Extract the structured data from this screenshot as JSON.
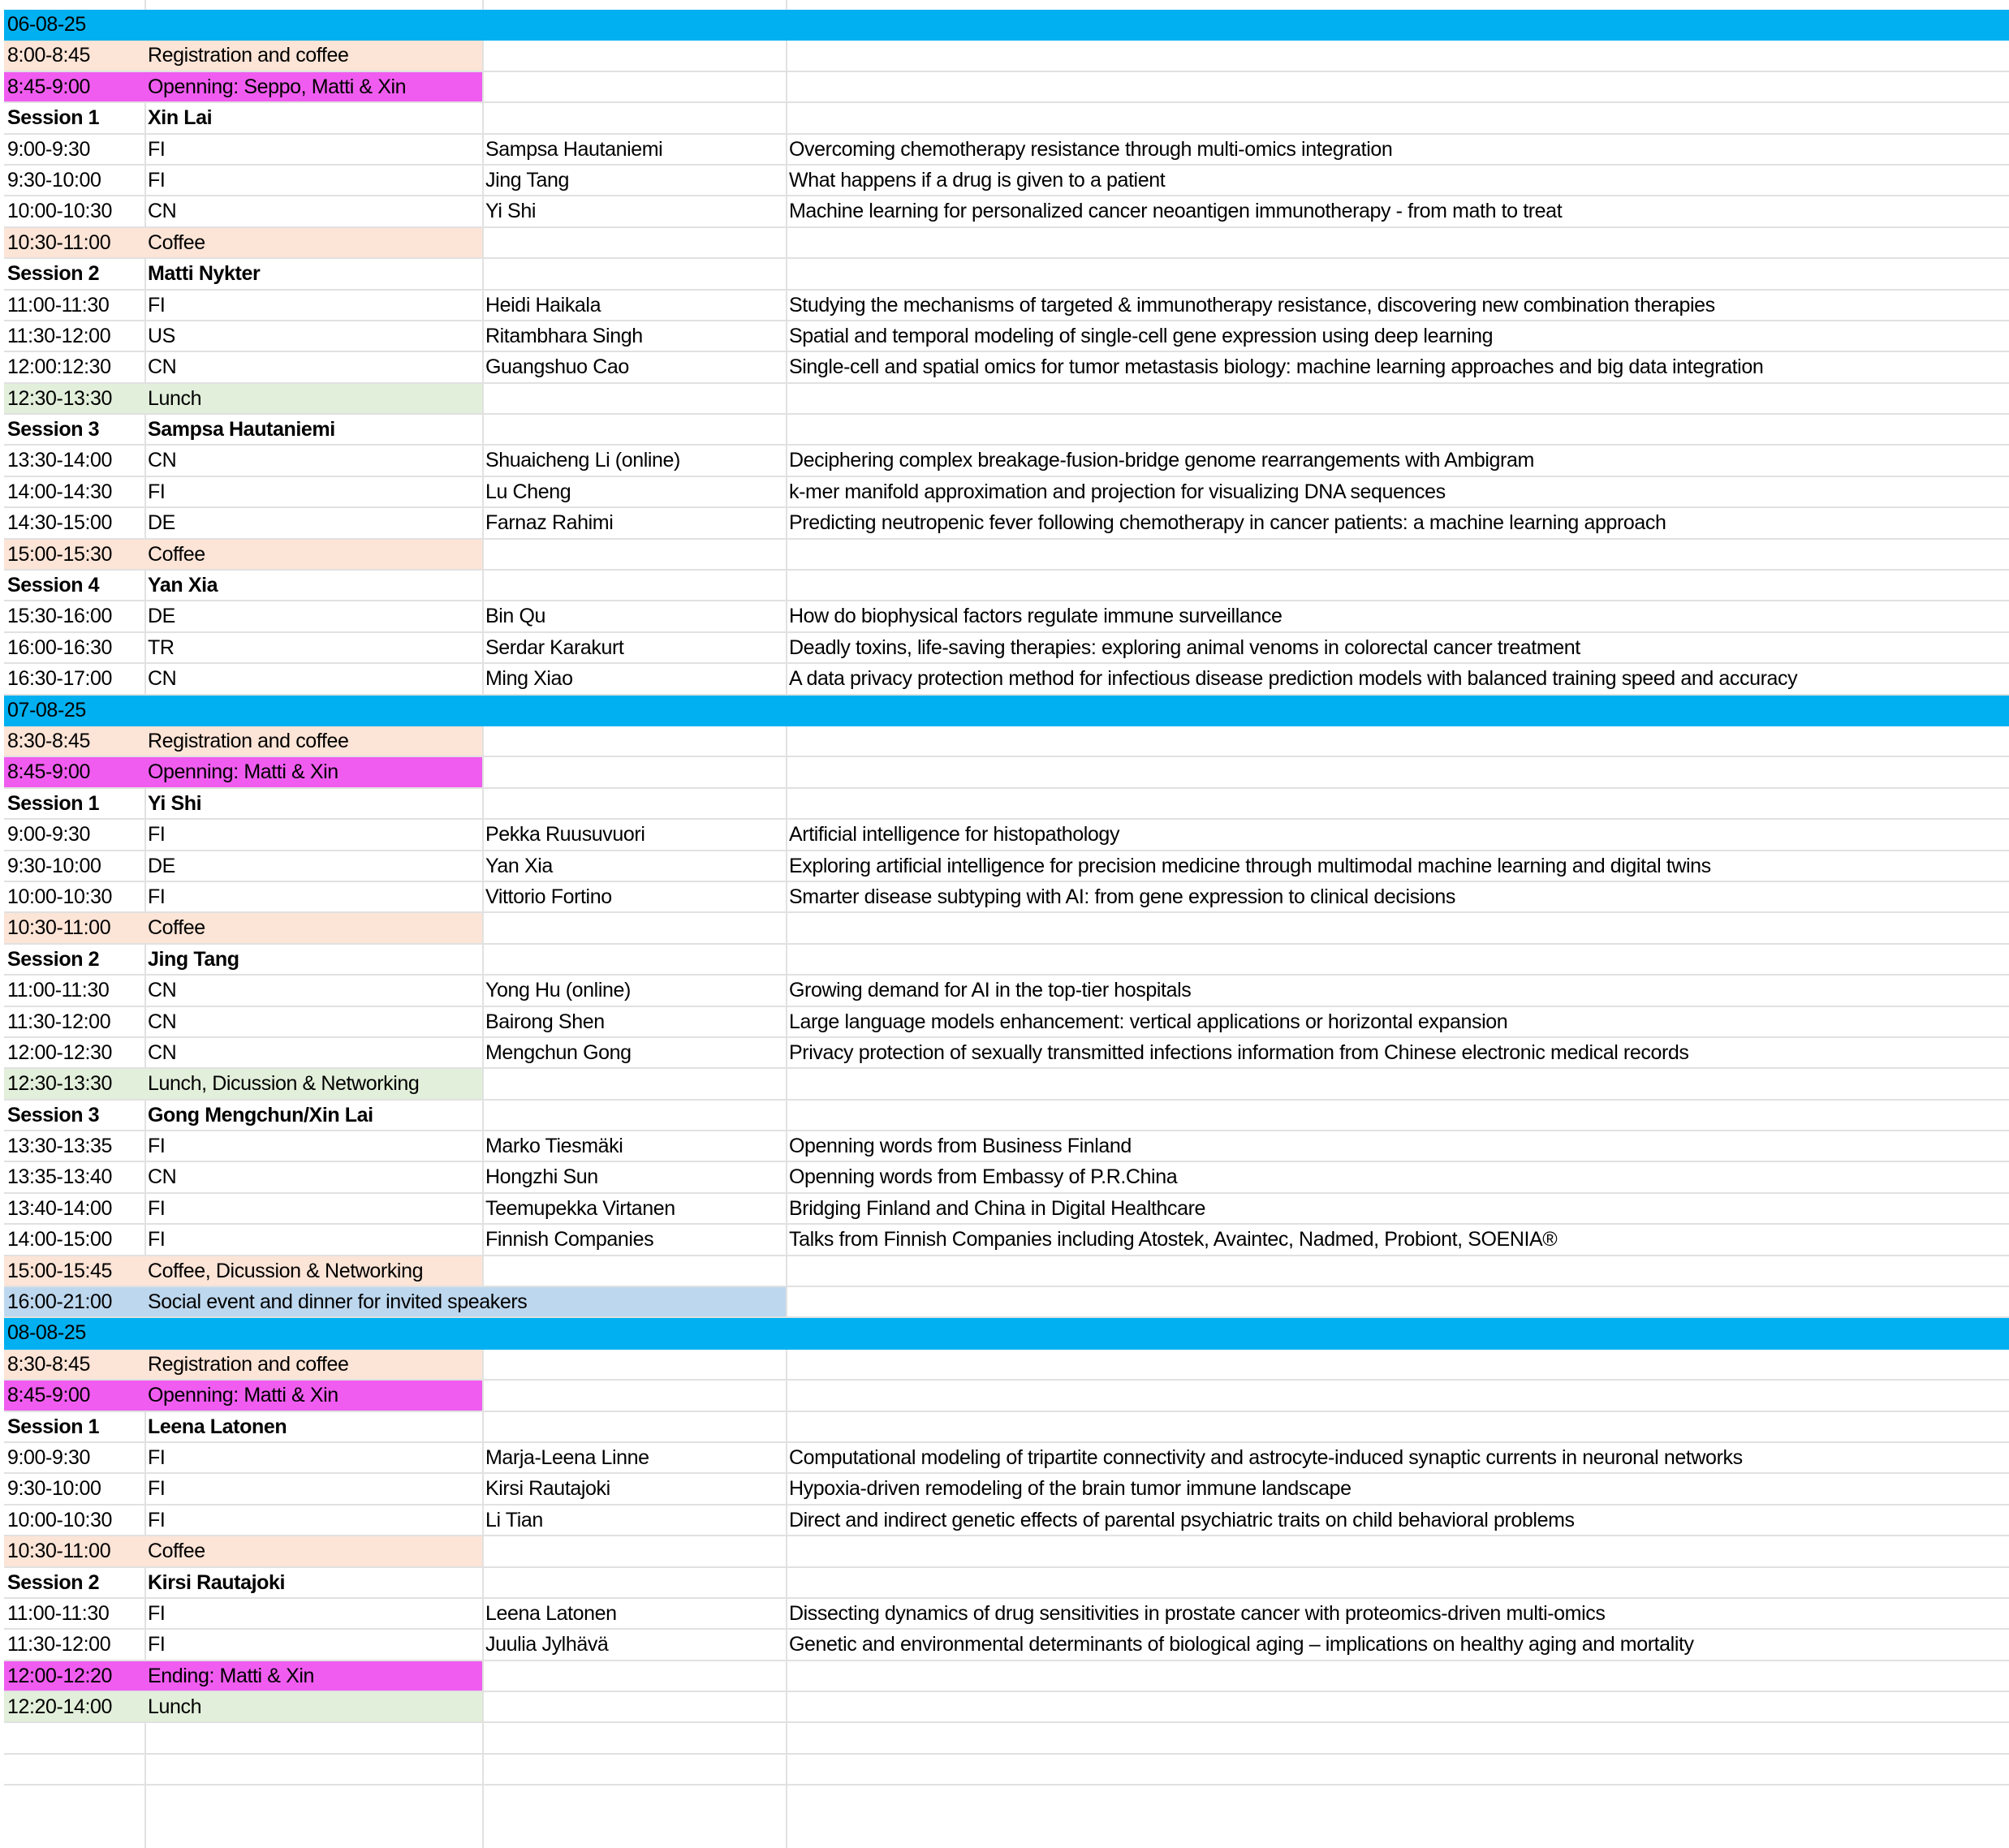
{
  "colors": {
    "day": "#00b0f0",
    "registration": "#fce4d6",
    "opening": "#f05cf0",
    "coffee": "#fce4d6",
    "lunch": "#e2efda",
    "social": "#bdd7ee"
  },
  "days": [
    {
      "date": "06-08-25",
      "rows": [
        {
          "type": "registration",
          "time": "8:00-8:45",
          "c2": "Registration and coffee"
        },
        {
          "type": "opening",
          "time": "8:45-9:00",
          "c2": "Openning: Seppo, Matti & Xin"
        },
        {
          "type": "session",
          "time": "Session 1",
          "c2": "Xin Lai"
        },
        {
          "type": "talk",
          "time": "9:00-9:30",
          "c2": "FI",
          "speaker": "Sampsa Hautaniemi",
          "title": "Overcoming chemotherapy resistance through multi-omics integration"
        },
        {
          "type": "talk",
          "time": "9:30-10:00",
          "c2": "FI",
          "speaker": "Jing Tang",
          "title": "What happens if a drug is given to a patient"
        },
        {
          "type": "talk",
          "time": "10:00-10:30",
          "c2": "CN",
          "speaker": "Yi Shi",
          "title": "Machine learning for personalized cancer neoantigen immunotherapy - from math to treat"
        },
        {
          "type": "coffee",
          "time": "10:30-11:00",
          "c2": "Coffee"
        },
        {
          "type": "session",
          "time": "Session 2",
          "c2": "Matti Nykter"
        },
        {
          "type": "talk",
          "time": "11:00-11:30",
          "c2": "FI",
          "speaker": "Heidi Haikala",
          "title": "Studying the mechanisms of targeted & immunotherapy resistance, discovering new combination therapies"
        },
        {
          "type": "talk",
          "time": "11:30-12:00",
          "c2": "US",
          "speaker": "Ritambhara Singh",
          "title": "Spatial and temporal modeling of single-cell gene expression using deep learning"
        },
        {
          "type": "talk",
          "time": "12:00:12:30",
          "c2": "CN",
          "speaker": "Guangshuo Cao",
          "title": "Single-cell and spatial omics for tumor metastasis biology: machine learning approaches and big data integration"
        },
        {
          "type": "lunch",
          "time": "12:30-13:30",
          "c2": "Lunch"
        },
        {
          "type": "session",
          "time": "Session 3",
          "c2": "Sampsa Hautaniemi"
        },
        {
          "type": "talk",
          "time": "13:30-14:00",
          "c2": "CN",
          "speaker": "Shuaicheng Li (online)",
          "title": "Deciphering complex breakage-fusion-bridge genome rearrangements with Ambigram"
        },
        {
          "type": "talk",
          "time": "14:00-14:30",
          "c2": "FI",
          "speaker": "Lu Cheng",
          "title": "k-mer manifold approximation and projection for visualizing DNA sequences"
        },
        {
          "type": "talk",
          "time": "14:30-15:00",
          "c2": "DE",
          "speaker": "Farnaz Rahimi",
          "title": "Predicting neutropenic fever following chemotherapy in cancer patients: a machine learning approach"
        },
        {
          "type": "coffee",
          "time": "15:00-15:30",
          "c2": "Coffee"
        },
        {
          "type": "session",
          "time": "Session 4",
          "c2": "Yan Xia"
        },
        {
          "type": "talk",
          "time": "15:30-16:00",
          "c2": "DE",
          "speaker": "Bin Qu",
          "title": "How do biophysical factors regulate immune surveillance"
        },
        {
          "type": "talk",
          "time": "16:00-16:30",
          "c2": "TR",
          "speaker": "Serdar Karakurt",
          "title": "Deadly toxins, life-saving therapies: exploring animal venoms in colorectal cancer treatment"
        },
        {
          "type": "talk",
          "time": "16:30-17:00",
          "c2": "CN",
          "speaker": "Ming Xiao",
          "title": "A data privacy protection method for infectious disease prediction models with balanced training speed and accuracy"
        }
      ]
    },
    {
      "date": "07-08-25",
      "rows": [
        {
          "type": "registration",
          "time": "8:30-8:45",
          "c2": "Registration and coffee"
        },
        {
          "type": "opening",
          "time": "8:45-9:00",
          "c2": "Openning: Matti & Xin"
        },
        {
          "type": "session",
          "time": "Session 1",
          "c2": "Yi Shi"
        },
        {
          "type": "talk",
          "time": "9:00-9:30",
          "c2": "FI",
          "speaker": "Pekka Ruusuvuori",
          "title": "Artificial intelligence for histopathology"
        },
        {
          "type": "talk",
          "time": "9:30-10:00",
          "c2": "DE",
          "speaker": "Yan Xia",
          "title": "Exploring artificial intelligence for precision medicine through multimodal machine learning and digital twins"
        },
        {
          "type": "talk",
          "time": "10:00-10:30",
          "c2": "FI",
          "speaker": "Vittorio Fortino",
          "title": "Smarter disease subtyping with AI: from gene expression to clinical decisions"
        },
        {
          "type": "coffee",
          "time": "10:30-11:00",
          "c2": "Coffee"
        },
        {
          "type": "session",
          "time": "Session 2",
          "c2": "Jing Tang"
        },
        {
          "type": "talk",
          "time": "11:00-11:30",
          "c2": "CN",
          "speaker": "Yong Hu (online)",
          "title": "Growing demand for AI in the top-tier hospitals"
        },
        {
          "type": "talk",
          "time": "11:30-12:00",
          "c2": "CN",
          "speaker": "Bairong Shen",
          "title": "Large language models enhancement: vertical applications or horizontal expansion"
        },
        {
          "type": "talk",
          "time": "12:00-12:30",
          "c2": "CN",
          "speaker": "Mengchun Gong",
          "title": "Privacy protection of sexually transmitted infections information from Chinese electronic medical records"
        },
        {
          "type": "lunch",
          "time": "12:30-13:30",
          "c2": "Lunch, Dicussion & Networking"
        },
        {
          "type": "session",
          "time": "Session 3",
          "c2": "Gong Mengchun/Xin Lai"
        },
        {
          "type": "talk",
          "time": "13:30-13:35",
          "c2": "FI",
          "speaker": "Marko Tiesmäki",
          "title": "Openning words from Business Finland"
        },
        {
          "type": "talk",
          "time": "13:35-13:40",
          "c2": "CN",
          "speaker": "Hongzhi Sun",
          "title": "Openning words from Embassy of P.R.China"
        },
        {
          "type": "talk",
          "time": "13:40-14:00",
          "c2": "FI",
          "speaker": "Teemupekka Virtanen",
          "title": "Bridging Finland and China in Digital Healthcare"
        },
        {
          "type": "talk",
          "time": "14:00-15:00",
          "c2": "FI",
          "speaker": "Finnish Companies",
          "title": "Talks from Finnish Companies including Atostek, Avaintec, Nadmed, Probiont, SOENIA®"
        },
        {
          "type": "coffee",
          "time": "15:00-15:45",
          "c2": "Coffee, Dicussion & Networking"
        },
        {
          "type": "social",
          "time": "16:00-21:00",
          "c2": "Social event and dinner for invited speakers"
        }
      ]
    },
    {
      "date": "08-08-25",
      "rows": [
        {
          "type": "registration",
          "time": "8:30-8:45",
          "c2": "Registration and coffee"
        },
        {
          "type": "opening",
          "time": "8:45-9:00",
          "c2": "Openning: Matti & Xin"
        },
        {
          "type": "session",
          "time": "Session 1",
          "c2": "Leena Latonen"
        },
        {
          "type": "talk",
          "time": "9:00-9:30",
          "c2": "FI",
          "speaker": "Marja-Leena Linne",
          "title": "Computational modeling of tripartite connectivity and astrocyte-induced synaptic currents in neuronal networks"
        },
        {
          "type": "talk",
          "time": "9:30-10:00",
          "c2": "FI",
          "speaker": "Kirsi Rautajoki",
          "title": "Hypoxia-driven remodeling of the brain tumor immune landscape"
        },
        {
          "type": "talk",
          "time": "10:00-10:30",
          "c2": "FI",
          "speaker": "Li Tian",
          "title": "Direct and indirect genetic effects of parental psychiatric traits on child behavioral problems"
        },
        {
          "type": "coffee",
          "time": "10:30-11:00",
          "c2": "Coffee"
        },
        {
          "type": "session",
          "time": "Session 2",
          "c2": "Kirsi Rautajoki"
        },
        {
          "type": "talk",
          "time": "11:00-11:30",
          "c2": "FI",
          "speaker": "Leena Latonen",
          "title": "Dissecting dynamics of drug sensitivities in prostate cancer with proteomics-driven multi-omics"
        },
        {
          "type": "talk",
          "time": "11:30-12:00",
          "c2": "FI",
          "speaker": "Juulia Jylhävä",
          "title": "Genetic and environmental determinants of biological aging – implications on healthy aging and mortality"
        },
        {
          "type": "opening",
          "time": "12:00-12:20",
          "c2": "Ending: Matti & Xin"
        },
        {
          "type": "lunch",
          "time": "12:20-14:00",
          "c2": "Lunch"
        }
      ]
    }
  ]
}
